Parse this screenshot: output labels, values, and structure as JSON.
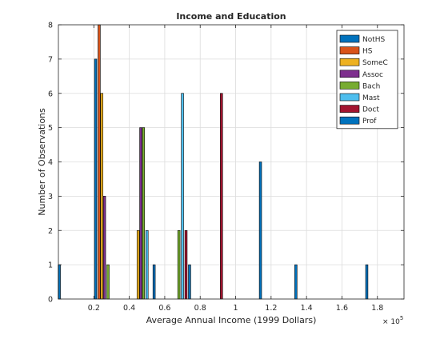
{
  "chart_data": {
    "type": "bar",
    "title": "Income and Education",
    "xlabel": "Average Annual Income  (1999 Dollars)",
    "ylabel": "Number of Observations",
    "x_exponent_base": "× 10",
    "x_exponent_power": "5",
    "xlim": [
      0,
      195000
    ],
    "ylim": [
      0,
      8
    ],
    "xticks": [
      20000,
      40000,
      60000,
      80000,
      100000,
      120000,
      140000,
      160000,
      180000
    ],
    "xtick_labels": [
      "0.2",
      "0.4",
      "0.6",
      "0.8",
      "1",
      "1.2",
      "1.4",
      "1.6",
      "1.8"
    ],
    "yticks": [
      0,
      1,
      2,
      3,
      4,
      5,
      6,
      7,
      8
    ],
    "ytick_labels": [
      "0",
      "1",
      "2",
      "3",
      "4",
      "5",
      "6",
      "7",
      "8"
    ],
    "grid": true,
    "legend_position": "top-right",
    "bar_width": 1300,
    "series": [
      {
        "name": "NotHS",
        "color": "#0072BD",
        "points": [
          {
            "x": 500,
            "y": 1
          },
          {
            "x": 21000,
            "y": 7
          }
        ]
      },
      {
        "name": "HS",
        "color": "#D95319",
        "points": [
          {
            "x": 23000,
            "y": 8
          }
        ]
      },
      {
        "name": "SomeC",
        "color": "#EDB120",
        "points": [
          {
            "x": 24500,
            "y": 6
          },
          {
            "x": 45000,
            "y": 2
          }
        ]
      },
      {
        "name": "Assoc",
        "color": "#7E2F8E",
        "points": [
          {
            "x": 26000,
            "y": 3
          },
          {
            "x": 46500,
            "y": 5
          }
        ]
      },
      {
        "name": "Bach",
        "color": "#77AC30",
        "points": [
          {
            "x": 28000,
            "y": 1
          },
          {
            "x": 48000,
            "y": 5
          },
          {
            "x": 68000,
            "y": 2
          }
        ]
      },
      {
        "name": "Mast",
        "color": "#4DBEEE",
        "points": [
          {
            "x": 50000,
            "y": 2
          },
          {
            "x": 70000,
            "y": 6
          }
        ]
      },
      {
        "name": "Doct",
        "color": "#A2142F",
        "points": [
          {
            "x": 72000,
            "y": 2
          },
          {
            "x": 92000,
            "y": 6
          }
        ]
      },
      {
        "name": "Prof",
        "color": "#0072BD",
        "points": [
          {
            "x": 54000,
            "y": 1
          },
          {
            "x": 74000,
            "y": 1
          },
          {
            "x": 114000,
            "y": 4
          },
          {
            "x": 134000,
            "y": 1
          },
          {
            "x": 174000,
            "y": 1
          }
        ]
      }
    ]
  }
}
